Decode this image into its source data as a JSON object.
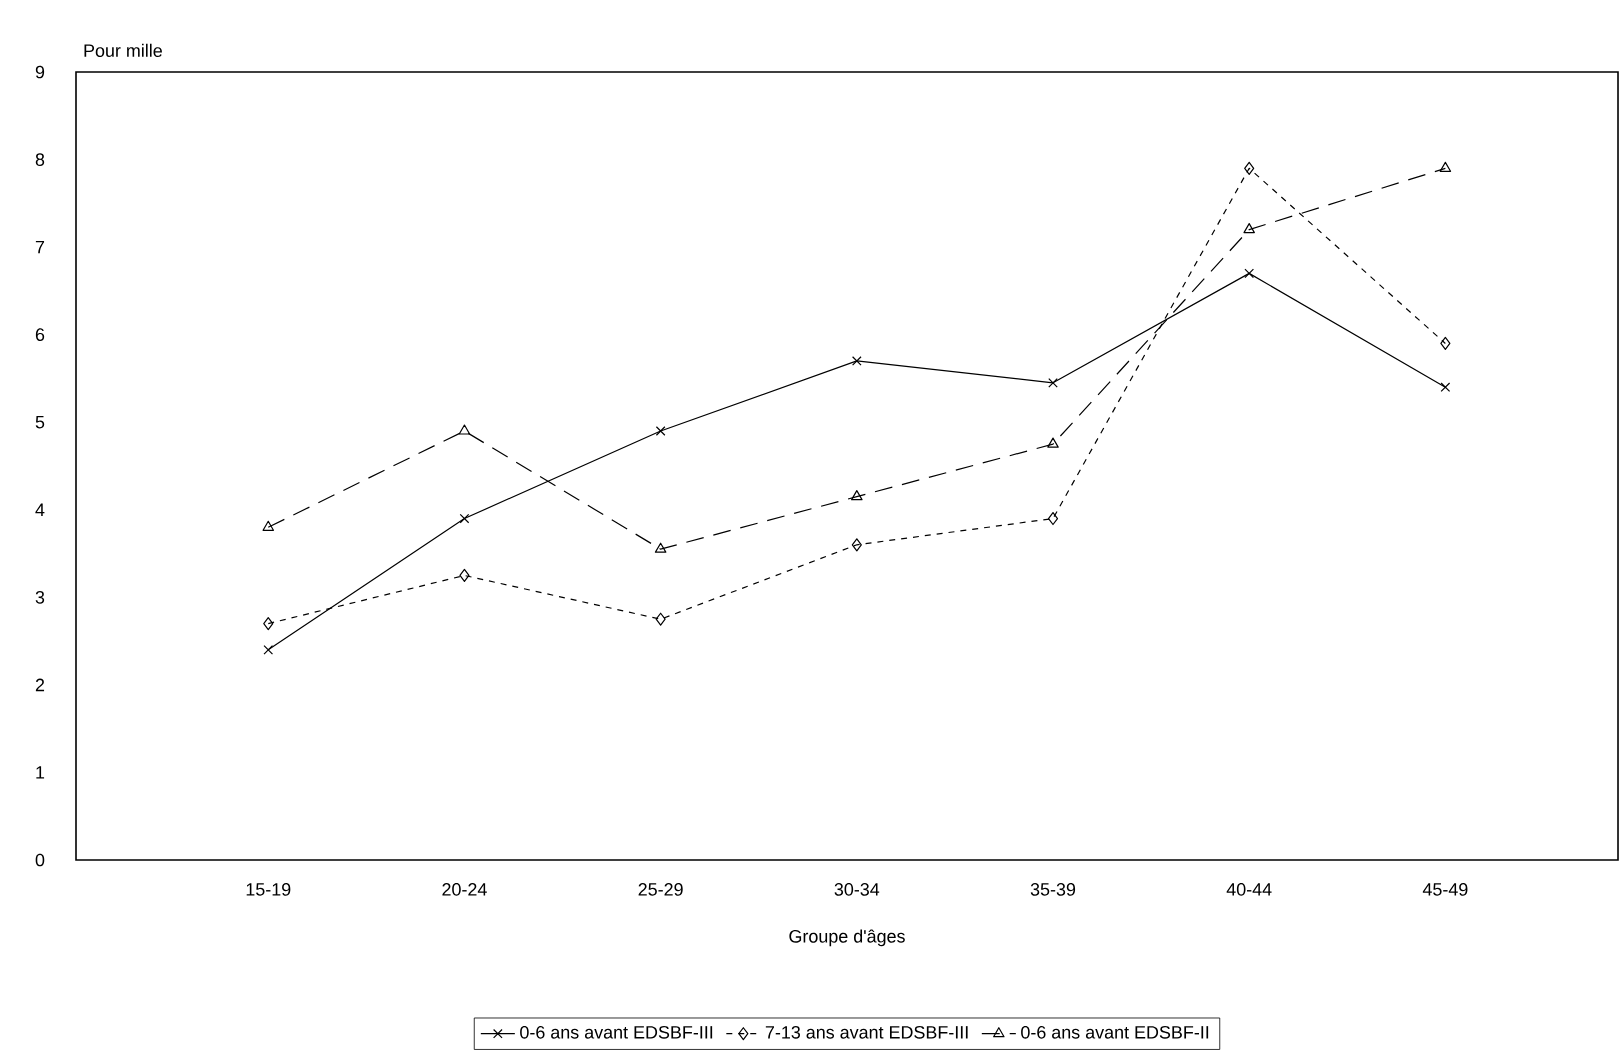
{
  "chart_data": {
    "type": "line",
    "ylabel": "Pour mille",
    "xlabel": "Groupe d'âges",
    "categories": [
      "15-19",
      "20-24",
      "25-29",
      "30-34",
      "35-39",
      "40-44",
      "45-49"
    ],
    "series": [
      {
        "name": "0-6 ans avant EDSBF-III",
        "color": "#000000",
        "marker": "cross",
        "line_style": "solid",
        "values": [
          2.4,
          3.9,
          4.9,
          5.7,
          5.45,
          6.7,
          5.4
        ]
      },
      {
        "name": "7-13 ans avant EDSBF-III",
        "color": "#000000",
        "marker": "diamond",
        "line_style": "dashed",
        "values": [
          2.7,
          3.25,
          2.75,
          3.6,
          3.9,
          7.9,
          5.9
        ]
      },
      {
        "name": "0-6 ans avant EDSBF-II",
        "color": "#000000",
        "marker": "triangle",
        "line_style": "dashdot",
        "values": [
          3.8,
          4.9,
          3.55,
          4.15,
          4.75,
          7.2,
          7.9
        ]
      }
    ],
    "ylim": [
      0,
      9
    ],
    "yticks": [
      0,
      1,
      2,
      3,
      4,
      5,
      6,
      7,
      8,
      9
    ],
    "grid": false,
    "legend": "bottom"
  }
}
